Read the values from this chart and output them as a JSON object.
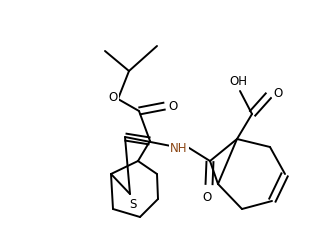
{
  "background": "#ffffff",
  "lc": "#000000",
  "tc": "#000000",
  "nhc": "#8B4513",
  "lw": 1.4,
  "fs": 8.5,
  "figsize": [
    3.18,
    2.51
  ],
  "dpi": 100,
  "xlim": [
    0,
    318
  ],
  "ylim": [
    0,
    251
  ]
}
